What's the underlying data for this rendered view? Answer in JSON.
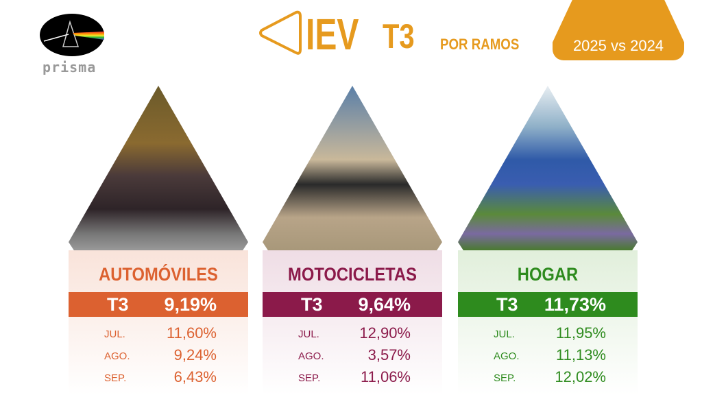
{
  "logo": {
    "text": "prisma"
  },
  "header": {
    "title": "IEV",
    "quarter": "T3",
    "subtitle": "POR RAMOS",
    "badge": "2025 vs 2024",
    "accent": "#E69A1E"
  },
  "cards": [
    {
      "name": "AUTOMÓVILES",
      "color": "#DC6130",
      "bg": "#F9E3DA",
      "t3_label": "T3",
      "t3_value": "9,19%",
      "image": "car-photo",
      "rows": [
        {
          "month": "JUL.",
          "value": "11,60%"
        },
        {
          "month": "AGO.",
          "value": "9,24%"
        },
        {
          "month": "SEP.",
          "value": "6,43%"
        }
      ]
    },
    {
      "name": "MOTOCICLETAS",
      "color": "#8B1A4A",
      "bg": "#EFDDE5",
      "t3_label": "T3",
      "t3_value": "9,64%",
      "image": "motorcycle-photo",
      "rows": [
        {
          "month": "JUL.",
          "value": "12,90%"
        },
        {
          "month": "AGO.",
          "value": "3,57%"
        },
        {
          "month": "SEP.",
          "value": "11,06%"
        }
      ]
    },
    {
      "name": "HOGAR",
      "color": "#2E8B1E",
      "bg": "#E1EFDB",
      "t3_label": "T3",
      "t3_value": "11,73%",
      "image": "house-photo",
      "rows": [
        {
          "month": "JUL.",
          "value": "11,95%"
        },
        {
          "month": "AGO.",
          "value": "11,13%"
        },
        {
          "month": "SEP.",
          "value": "12,02%"
        }
      ]
    }
  ]
}
